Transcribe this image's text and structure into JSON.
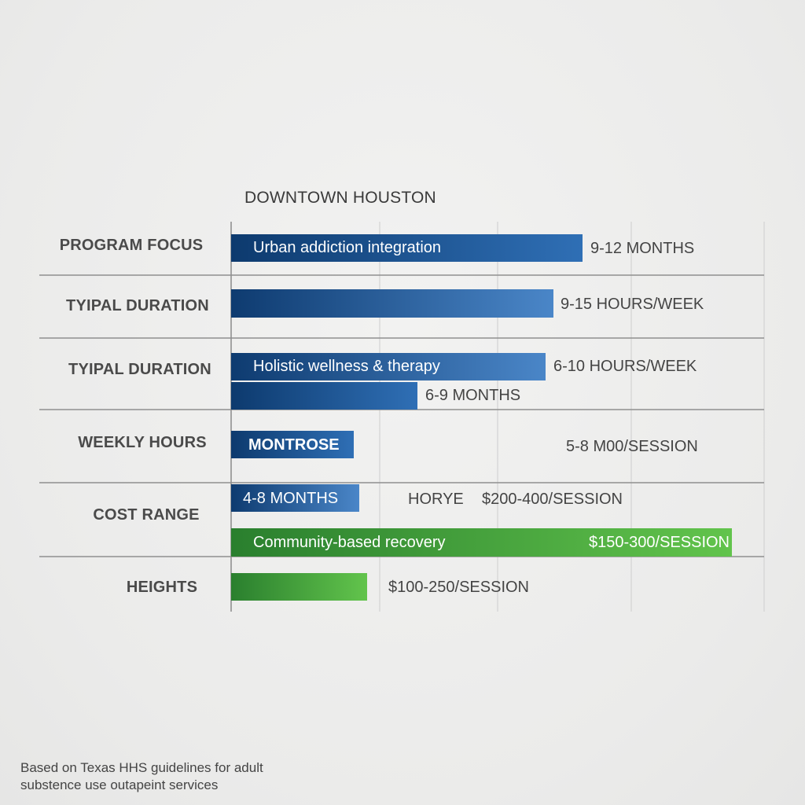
{
  "chart_data": {
    "type": "bar",
    "title": "DOWNTOWN HOUSTON",
    "row_labels": [
      "PROGRAM FOCUS",
      "TYIPAL DURATION",
      "TYIPAL DURATION",
      "WEEKLY HOURS",
      "COST RANGE",
      "HEIGHTS"
    ],
    "grid": true,
    "bars": [
      {
        "row": 0,
        "label": "Urban addiction integration",
        "value_text": "9-12 MONTHS",
        "length": 0.66,
        "color": "blue"
      },
      {
        "row": 1,
        "label": "",
        "value_text": "9-15 HOURS/WEEK",
        "length": 0.605,
        "color": "blue"
      },
      {
        "row": 2,
        "label": "Holistic wellness & therapy",
        "value_text": "6-10 HOURS/WEEK",
        "length": 0.59,
        "color": "blue"
      },
      {
        "row": 2,
        "label": "",
        "value_text": "6-9 MONTHS",
        "length": 0.35,
        "color": "blue"
      },
      {
        "row": 3,
        "label": "MONTROSE",
        "value_text": "5-8 M00/SESSION",
        "length": 0.23,
        "color": "blue"
      },
      {
        "row": 4,
        "label": "4-8 MONTHS",
        "value_text": "$200-400/SESSION",
        "extra_text": "HORYE",
        "length": 0.24,
        "color": "blue"
      },
      {
        "row": 4,
        "label": "Community-based recovery",
        "value_text": "$150-300/SESSION",
        "length": 0.94,
        "color": "green"
      },
      {
        "row": 5,
        "label": "",
        "value_text": "$100-250/SESSION",
        "length": 0.255,
        "color": "green"
      }
    ],
    "colors": {
      "blue_dark": "#0d3a6e",
      "blue_light": "#3f7fc4",
      "green_dark": "#2a7f2e",
      "green_light": "#5fc04a"
    }
  },
  "footnote": "Based on Texas HHS guidelines for adult substence use outapeint services"
}
